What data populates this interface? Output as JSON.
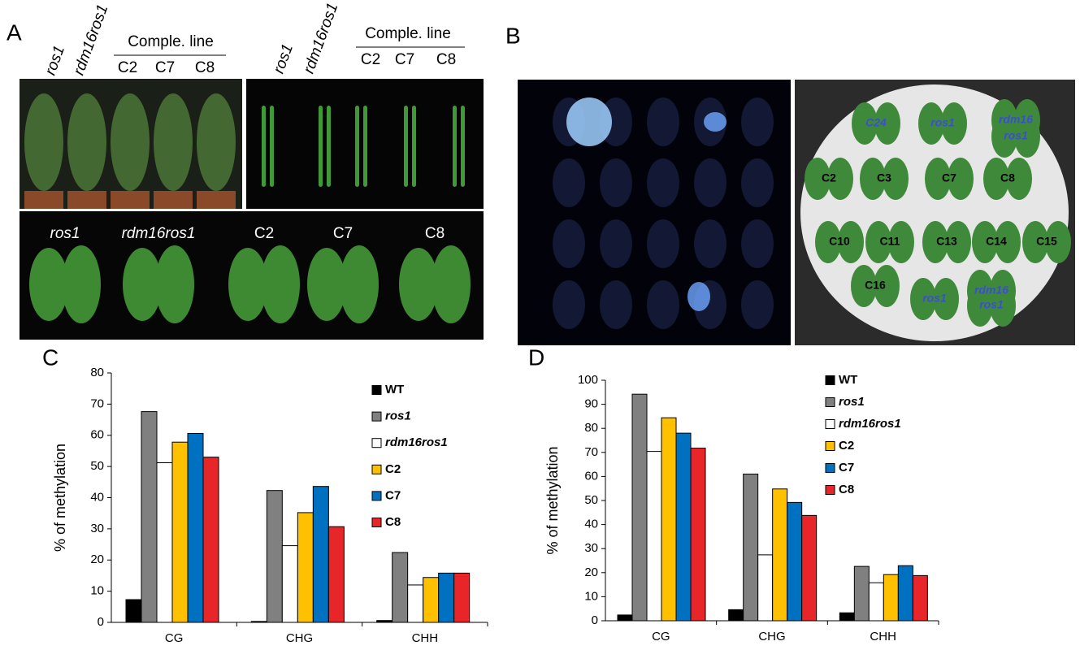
{
  "panel_letters": [
    "A",
    "B",
    "C",
    "D"
  ],
  "panel_a": {
    "top_left": {
      "genotypes": [
        "ros1",
        "rdm16ros1"
      ],
      "group": "Comple. line",
      "lines": [
        "C2",
        "C7",
        "C8"
      ]
    },
    "top_right": {
      "genotypes": [
        "ros1",
        "rdm16ros1"
      ],
      "group": "Comple. line",
      "lines": [
        "C2",
        "C7",
        "C8"
      ]
    },
    "bottom": [
      "ros1",
      "rdm16ros1",
      "C2",
      "C7",
      "C8"
    ]
  },
  "panel_b": {
    "plate_labels": [
      "C24",
      "ros1",
      "rdm16",
      "ros1",
      "C2",
      "C3",
      "C7",
      "C8",
      "C10",
      "C11",
      "C13",
      "C14",
      "C15",
      "C16",
      "ros1",
      "rdm16",
      "ros1"
    ]
  },
  "chart_data": [
    {
      "type": "bar",
      "y_label": "% of methylation",
      "categories": [
        "CG",
        "CHG",
        "CHH"
      ],
      "ylim": [
        0,
        80
      ],
      "yticks": [
        0,
        10,
        20,
        30,
        40,
        50,
        60,
        70,
        80
      ],
      "legend": "top-right",
      "series": [
        {
          "name": "WT",
          "color": "#000000",
          "values": [
            7.3,
            0.3,
            0.6
          ]
        },
        {
          "name": "ros1",
          "color": "#808080",
          "italic": true,
          "values": [
            67.6,
            42.3,
            22.4
          ]
        },
        {
          "name": "rdm16ros1",
          "color": "#ffffff",
          "italic": true,
          "values": [
            51.2,
            24.6,
            12.0
          ]
        },
        {
          "name": "C2",
          "color": "#ffc000",
          "values": [
            57.8,
            35.2,
            14.4
          ]
        },
        {
          "name": "C7",
          "color": "#0070c0",
          "values": [
            60.6,
            43.6,
            15.8
          ]
        },
        {
          "name": "C8",
          "color": "#e8262a",
          "values": [
            53.0,
            30.7,
            15.8
          ]
        }
      ]
    },
    {
      "type": "bar",
      "y_label": "% of methylation",
      "categories": [
        "CG",
        "CHG",
        "CHH"
      ],
      "ylim": [
        0,
        100
      ],
      "yticks": [
        0,
        10,
        20,
        30,
        40,
        50,
        60,
        70,
        80,
        90,
        100
      ],
      "legend": "top-right",
      "series": [
        {
          "name": "WT",
          "color": "#000000",
          "values": [
            2.4,
            4.6,
            3.3
          ]
        },
        {
          "name": "ros1",
          "color": "#808080",
          "italic": true,
          "values": [
            94.2,
            61.0,
            22.6
          ]
        },
        {
          "name": "rdm16ros1",
          "color": "#ffffff",
          "italic": true,
          "values": [
            70.4,
            27.4,
            15.8
          ]
        },
        {
          "name": "C2",
          "color": "#ffc000",
          "values": [
            84.4,
            54.8,
            19.2
          ]
        },
        {
          "name": "C7",
          "color": "#0070c0",
          "values": [
            78.0,
            49.2,
            22.9
          ]
        },
        {
          "name": "C8",
          "color": "#e8262a",
          "values": [
            71.8,
            43.8,
            18.8
          ]
        }
      ]
    }
  ]
}
